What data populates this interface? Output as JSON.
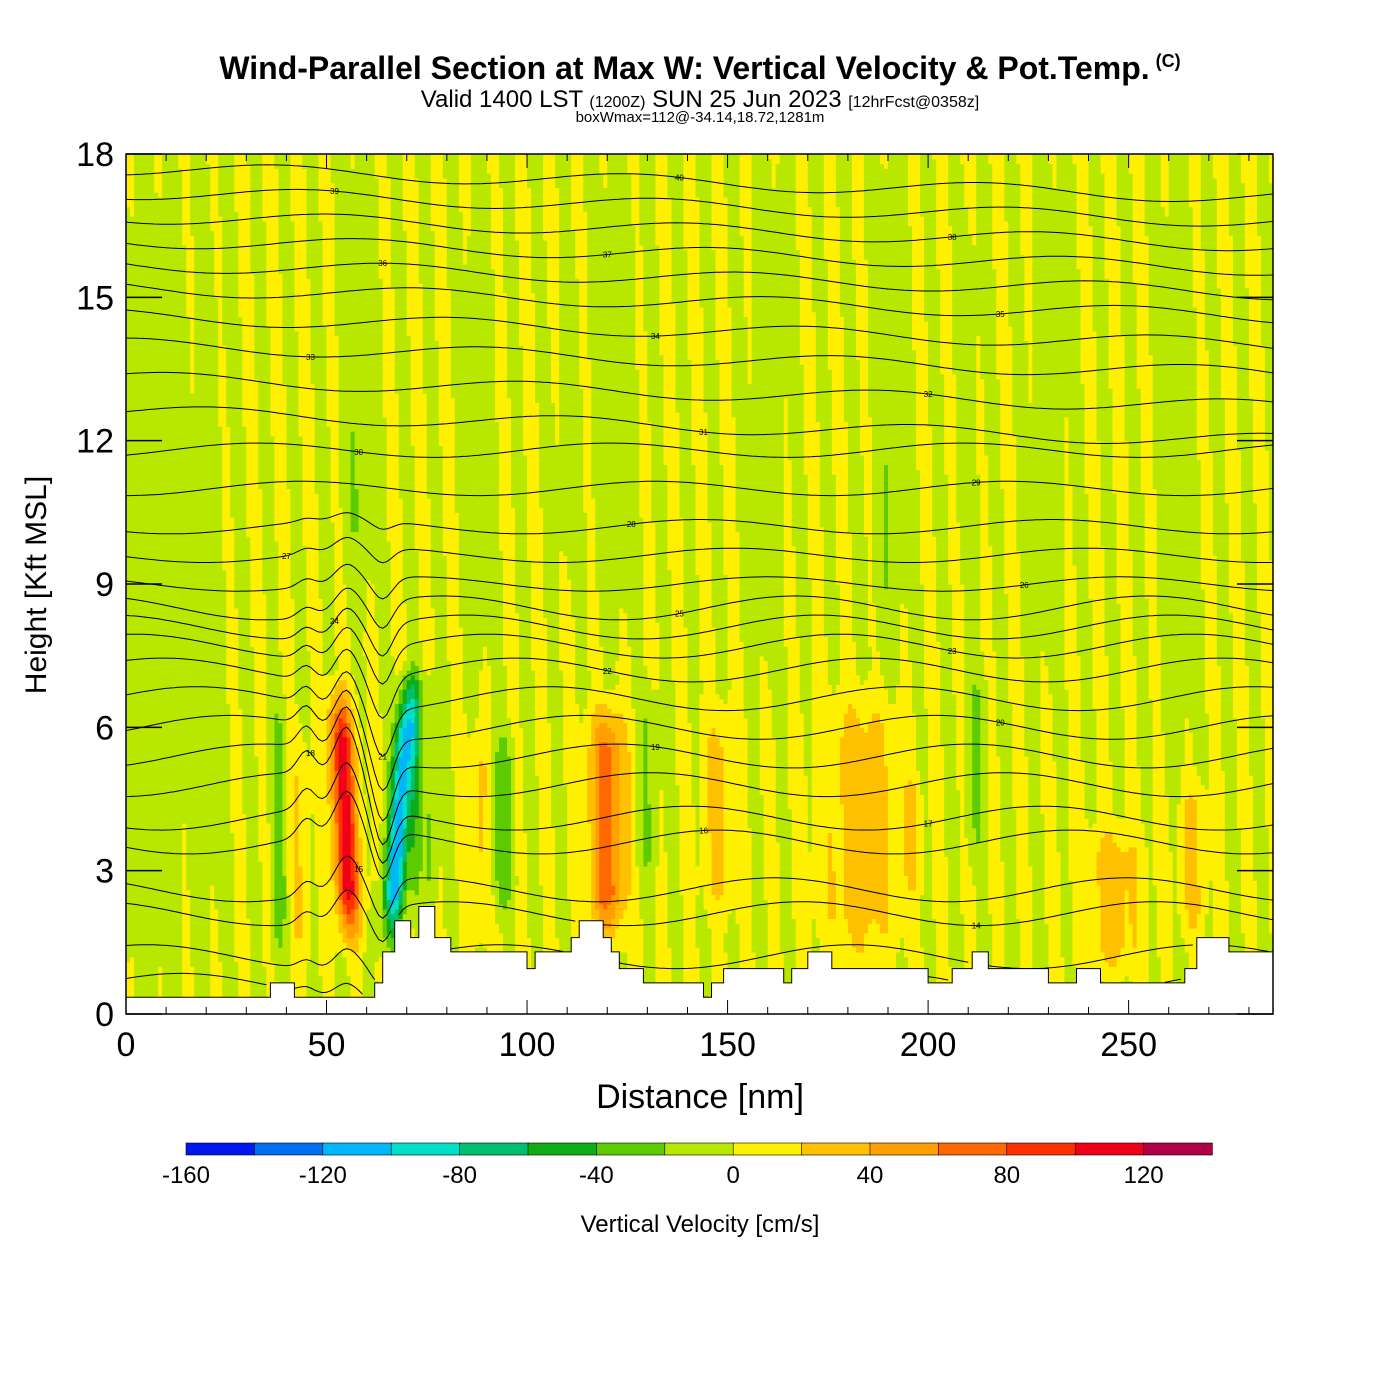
{
  "title": {
    "main": "Wind-Parallel Section at Max W: Vertical Velocity & Pot.Temp.",
    "copyright": "(C)",
    "valid_prefix": "Valid 1400 LST",
    "valid_utc": "(1200Z)",
    "valid_date": "SUN 25 Jun 2023",
    "forecast": "[12hrFcst@0358z]",
    "box_info": "boxWmax=112@-34.14,18.72,1281m"
  },
  "chart_data": {
    "type": "heatmap",
    "xlabel": "Distance [nm]",
    "ylabel": "Height [Kft MSL]",
    "xlim": [
      0,
      286
    ],
    "ylim": [
      0,
      18
    ],
    "x_ticks": [
      0,
      50,
      100,
      150,
      200,
      250
    ],
    "y_ticks": [
      0,
      3,
      6,
      9,
      12,
      15,
      18
    ],
    "colorbar": {
      "label": "Vertical Velocity [cm/s]",
      "bounds": [
        -160,
        -140,
        -120,
        -100,
        -80,
        -60,
        -40,
        -20,
        0,
        20,
        40,
        60,
        80,
        100,
        120,
        140
      ],
      "tick_labels": [
        -160,
        -120,
        -80,
        -40,
        0,
        40,
        80,
        120
      ],
      "colors": [
        "#0018f0",
        "#0070f0",
        "#00b8f8",
        "#00e0c8",
        "#00c070",
        "#10ac18",
        "#5ccc00",
        "#b8e800",
        "#ffef00",
        "#ffc000",
        "#ffa000",
        "#ff6800",
        "#ff3000",
        "#f00018",
        "#b00048"
      ]
    },
    "terrain": [
      [
        0,
        0.35
      ],
      [
        36,
        0.35
      ],
      [
        36,
        0.65
      ],
      [
        42,
        0.65
      ],
      [
        42,
        0.35
      ],
      [
        62,
        0.35
      ],
      [
        62,
        0.65
      ],
      [
        64,
        0.65
      ],
      [
        64,
        1.3
      ],
      [
        67,
        1.3
      ],
      [
        67,
        1.95
      ],
      [
        71,
        1.95
      ],
      [
        71,
        1.6
      ],
      [
        73,
        1.6
      ],
      [
        73,
        2.25
      ],
      [
        77,
        2.25
      ],
      [
        77,
        1.6
      ],
      [
        81,
        1.6
      ],
      [
        81,
        1.3
      ],
      [
        100,
        1.3
      ],
      [
        100,
        0.95
      ],
      [
        102,
        0.95
      ],
      [
        102,
        1.3
      ],
      [
        111,
        1.3
      ],
      [
        111,
        1.6
      ],
      [
        113,
        1.6
      ],
      [
        113,
        1.95
      ],
      [
        119,
        1.95
      ],
      [
        119,
        1.6
      ],
      [
        121,
        1.6
      ],
      [
        121,
        1.3
      ],
      [
        123,
        1.3
      ],
      [
        123,
        0.95
      ],
      [
        129,
        0.95
      ],
      [
        129,
        0.65
      ],
      [
        144,
        0.65
      ],
      [
        144,
        0.35
      ],
      [
        146,
        0.35
      ],
      [
        146,
        0.65
      ],
      [
        149,
        0.65
      ],
      [
        149,
        0.95
      ],
      [
        164,
        0.95
      ],
      [
        164,
        0.65
      ],
      [
        166,
        0.65
      ],
      [
        166,
        0.95
      ],
      [
        170,
        0.95
      ],
      [
        170,
        1.3
      ],
      [
        176,
        1.3
      ],
      [
        176,
        0.95
      ],
      [
        200,
        0.95
      ],
      [
        200,
        0.65
      ],
      [
        206,
        0.65
      ],
      [
        206,
        0.95
      ],
      [
        211,
        0.95
      ],
      [
        211,
        1.3
      ],
      [
        215,
        1.3
      ],
      [
        215,
        0.95
      ],
      [
        230,
        0.95
      ],
      [
        230,
        0.65
      ],
      [
        237,
        0.65
      ],
      [
        237,
        0.95
      ],
      [
        243,
        0.95
      ],
      [
        243,
        0.65
      ],
      [
        264,
        0.65
      ],
      [
        264,
        0.95
      ],
      [
        267,
        0.95
      ],
      [
        267,
        1.6
      ],
      [
        275,
        1.6
      ],
      [
        275,
        1.3
      ],
      [
        286,
        1.3
      ]
    ],
    "w_field": {
      "background": 6,
      "columns": [
        {
          "x": 3,
          "w": -12,
          "width": 5
        },
        {
          "x": 10,
          "w": -10,
          "width": 4
        },
        {
          "x": 20,
          "w": -8,
          "width": 5
        },
        {
          "x": 38,
          "w": -35,
          "width": 1.8,
          "base": 1.0,
          "top": 6.5
        },
        {
          "x": 43,
          "w": 18,
          "width": 2.5,
          "base": 0.8,
          "top": 6
        },
        {
          "x": 56,
          "w": 110,
          "width": 3,
          "base": 1.5,
          "top": 6.8,
          "tilt": -0.55
        },
        {
          "x": 66,
          "w": -115,
          "width": 2.6,
          "base": 1.5,
          "top": 7.0,
          "tilt": 0.85
        },
        {
          "x": 72,
          "w": -30,
          "width": 1.6,
          "base": 2.0,
          "top": 7.5
        },
        {
          "x": 76,
          "w": -25,
          "width": 1.6,
          "base": 2.0,
          "top": 7.0
        },
        {
          "x": 88,
          "w": 25,
          "width": 2.5,
          "base": 1.5,
          "top": 6.0
        },
        {
          "x": 94,
          "w": -35,
          "width": 2.5,
          "base": 2.0,
          "top": 6.0
        },
        {
          "x": 120,
          "w": 70,
          "width": 4.5,
          "base": 1.5,
          "top": 6.5
        },
        {
          "x": 130,
          "w": -20,
          "width": 2.5,
          "base": 2.5,
          "top": 7.0
        },
        {
          "x": 148,
          "w": 25,
          "width": 4,
          "base": 2.0,
          "top": 6.5
        },
        {
          "x": 183,
          "w": 32,
          "width": 9,
          "base": 1.0,
          "top": 6.8
        },
        {
          "x": 196,
          "w": 25,
          "width": 2,
          "base": 2.5,
          "top": 5.0
        },
        {
          "x": 212,
          "w": -20,
          "width": 2.5,
          "base": 3.0,
          "top": 7.5
        },
        {
          "x": 246,
          "w": 30,
          "width": 7,
          "base": 0.8,
          "top": 4.0
        },
        {
          "x": 266,
          "w": 25,
          "width": 3,
          "base": 1.5,
          "top": 5.0
        },
        {
          "x": 58,
          "w": -18,
          "width": 4,
          "base": 8.5,
          "top": 18
        },
        {
          "x": 88,
          "w": -14,
          "width": 3,
          "base": 7,
          "top": 18
        },
        {
          "x": 122,
          "w": -14,
          "width": 5,
          "base": 8,
          "top": 18
        },
        {
          "x": 160,
          "w": -14,
          "width": 4,
          "base": 7,
          "top": 18
        },
        {
          "x": 190,
          "w": -16,
          "width": 4,
          "base": 7,
          "top": 18
        },
        {
          "x": 230,
          "w": -14,
          "width": 4,
          "base": 7,
          "top": 18
        },
        {
          "x": 262,
          "w": -14,
          "width": 4,
          "base": 5,
          "top": 18
        },
        {
          "x": 110,
          "w": -10,
          "width": 3,
          "base": 9,
          "top": 16
        },
        {
          "x": 210,
          "w": -10,
          "width": 3,
          "base": 9,
          "top": 17
        }
      ]
    },
    "theta_contours": [
      {
        "value": 12,
        "label": "12",
        "base_y": 0.6
      },
      {
        "value": 13,
        "label": "13",
        "base_y": 1.2
      },
      {
        "value": 14,
        "label": "14",
        "base_y": 2.1
      },
      {
        "value": 15,
        "label": "15",
        "base_y": 2.6
      },
      {
        "value": 16,
        "label": "16",
        "base_y": 3.6
      },
      {
        "value": 17,
        "label": "17",
        "base_y": 4.1
      },
      {
        "value": 18,
        "label": "18",
        "base_y": 4.8
      },
      {
        "value": 19,
        "label": "19",
        "base_y": 5.4
      },
      {
        "value": 20,
        "label": "20",
        "base_y": 6.0
      },
      {
        "value": 21,
        "label": "21",
        "base_y": 6.6
      },
      {
        "value": 22,
        "label": "22",
        "base_y": 7.2
      },
      {
        "value": 23,
        "label": "23",
        "base_y": 7.7
      },
      {
        "value": 24,
        "label": "24",
        "base_y": 8.1
      },
      {
        "value": 25,
        "label": "25",
        "base_y": 8.5
      },
      {
        "value": 26,
        "label": "26",
        "base_y": 9.0
      },
      {
        "value": 27,
        "label": "27",
        "base_y": 9.6
      },
      {
        "value": 28,
        "label": "28",
        "base_y": 10.2
      },
      {
        "value": 29,
        "label": "29",
        "base_y": 11.0
      },
      {
        "value": 30,
        "label": "30",
        "base_y": 11.8
      },
      {
        "value": 31,
        "label": "31",
        "base_y": 12.6
      },
      {
        "value": 32,
        "label": "32",
        "base_y": 13.3
      },
      {
        "value": 33,
        "label": "33",
        "base_y": 14.0
      },
      {
        "value": 34,
        "label": "34",
        "base_y": 14.6
      },
      {
        "value": 35,
        "label": "35",
        "base_y": 15.2
      },
      {
        "value": 36,
        "label": "36",
        "base_y": 15.7
      },
      {
        "value": 37,
        "label": "37",
        "base_y": 16.2
      },
      {
        "value": 38,
        "label": "38",
        "base_y": 16.7
      },
      {
        "value": 39,
        "label": "39",
        "base_y": 17.2
      },
      {
        "value": 40,
        "label": "40",
        "base_y": 17.7
      }
    ]
  }
}
